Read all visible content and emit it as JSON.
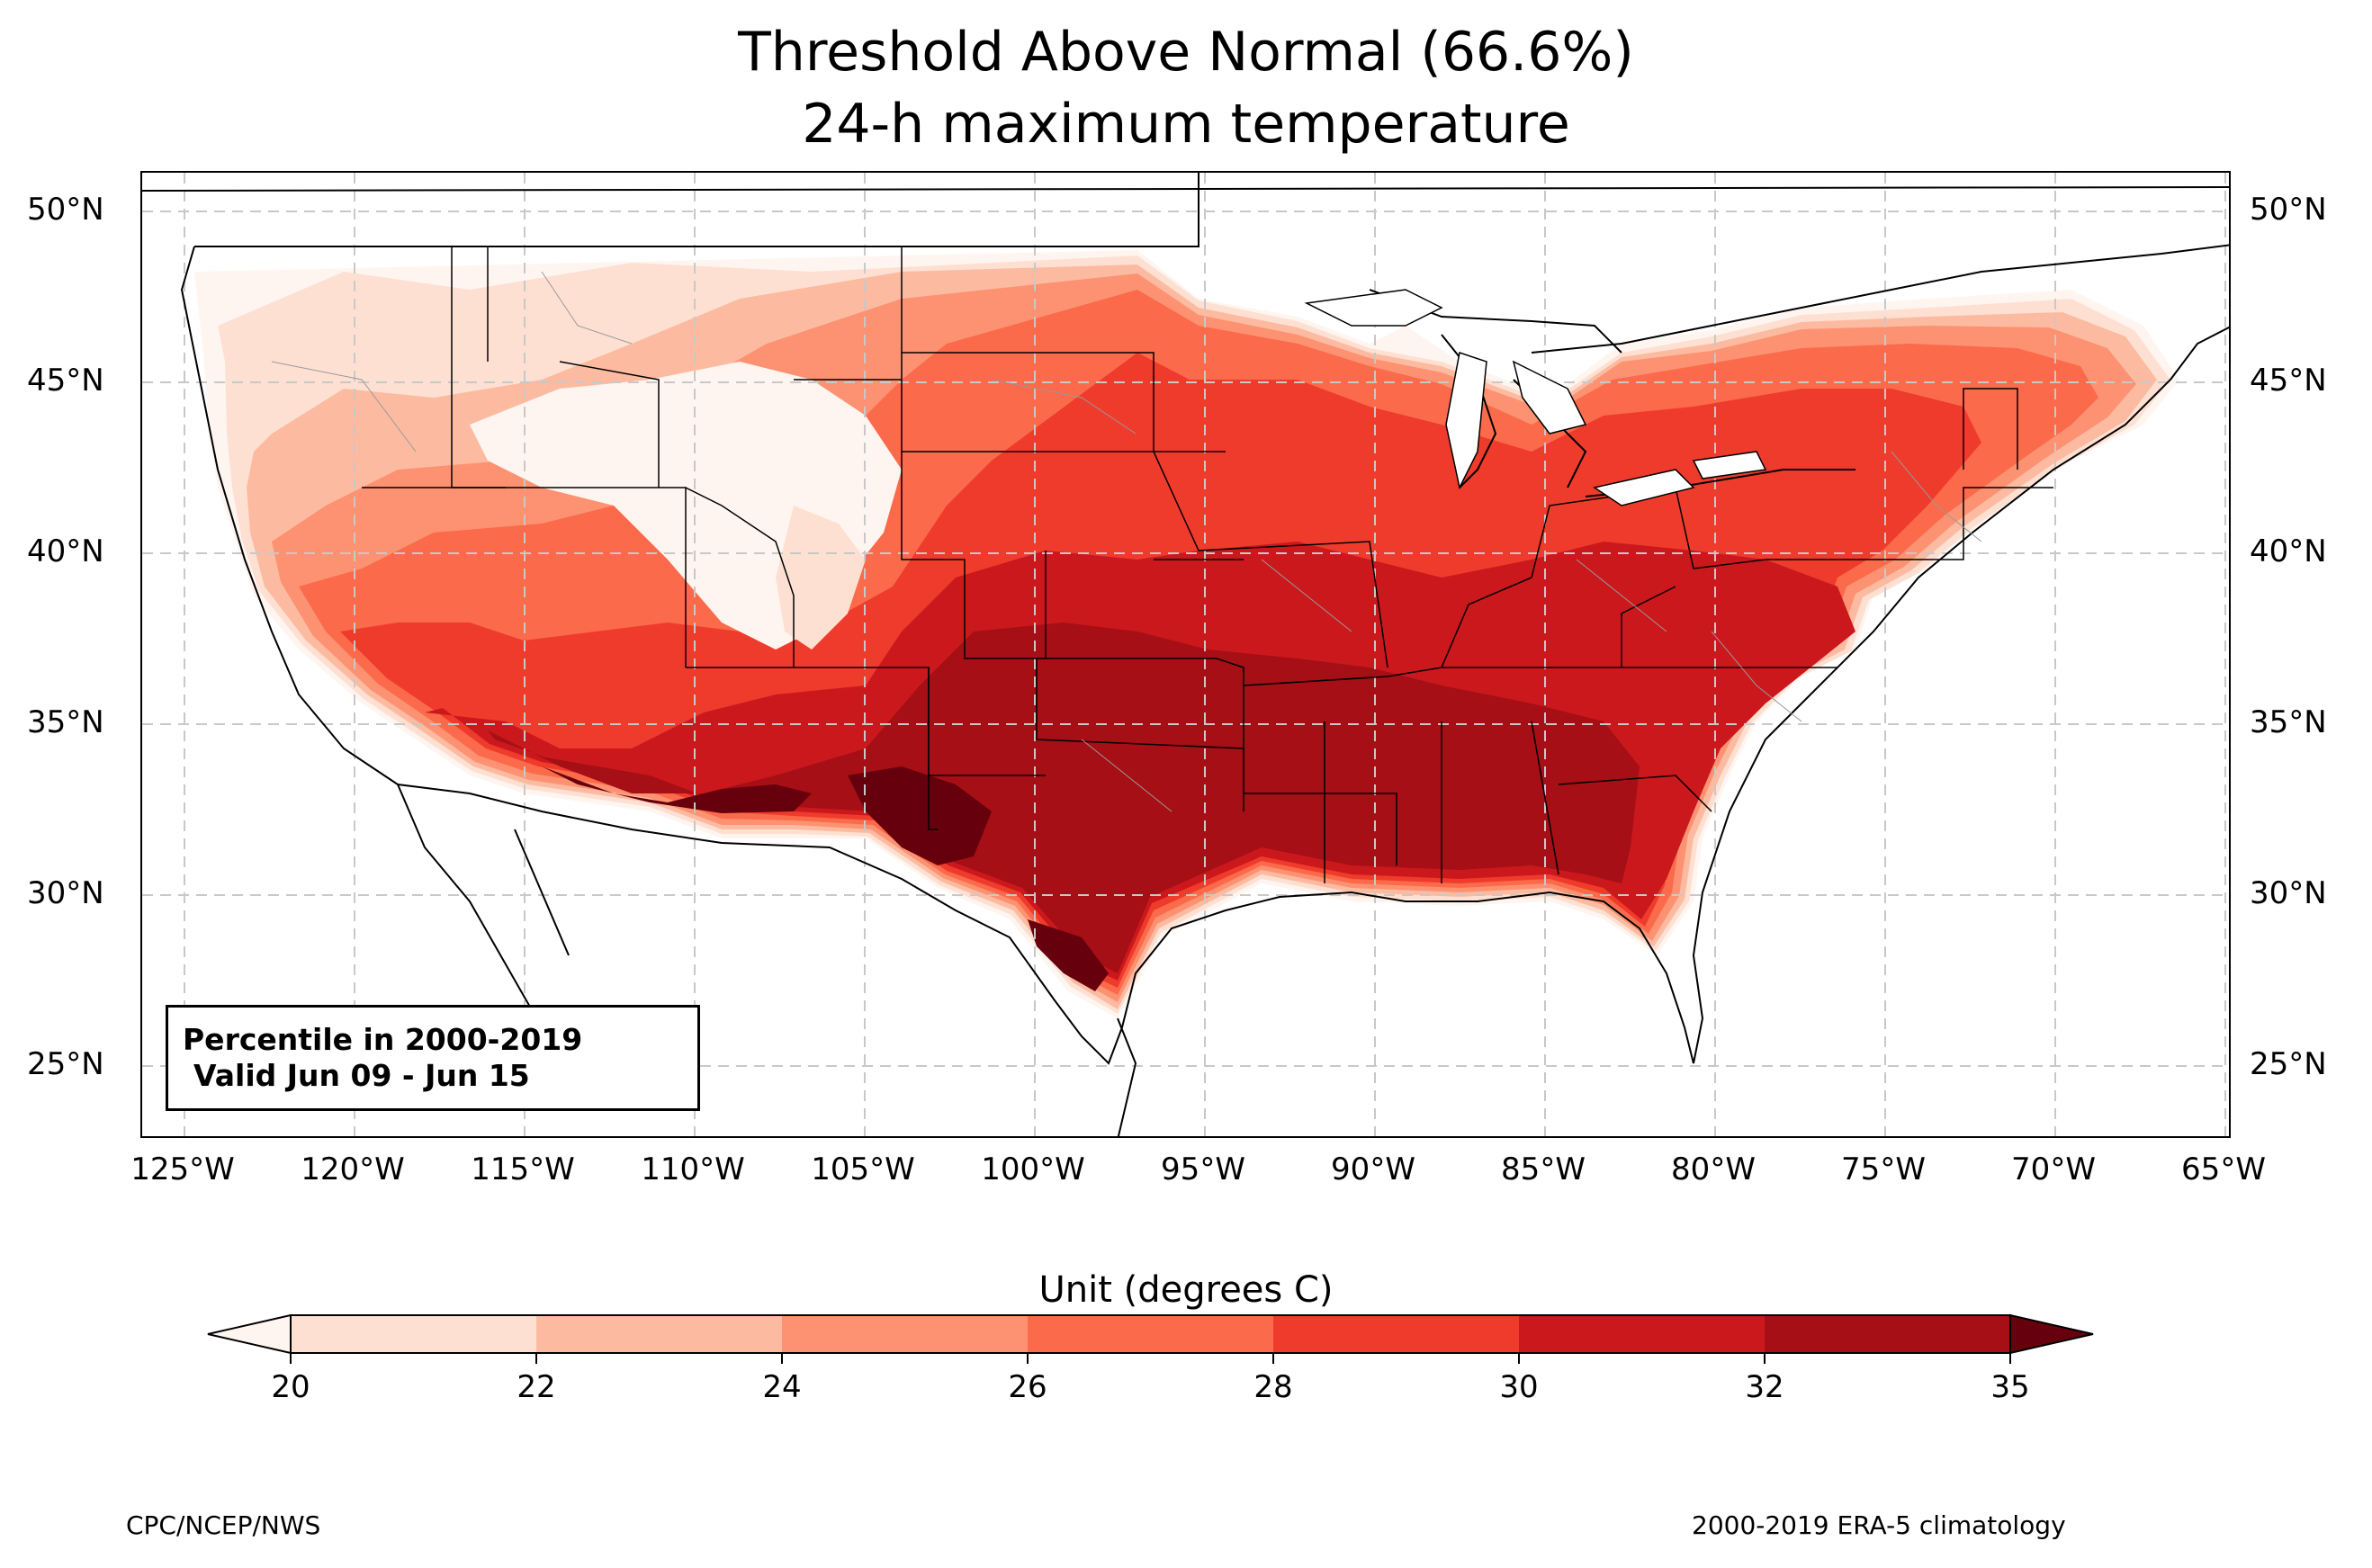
{
  "title_line1": "Threshold Above Normal (66.6%)",
  "title_line2": "24-h maximum temperature",
  "info_box": {
    "line1": "Percentile in 2000-2019",
    "line2": "Valid Jun 09 - Jun 15"
  },
  "lat_ticks": [
    "50°N",
    "45°N",
    "40°N",
    "35°N",
    "30°N",
    "25°N"
  ],
  "lon_ticks": [
    "125°W",
    "120°W",
    "115°W",
    "110°W",
    "105°W",
    "100°W",
    "95°W",
    "90°W",
    "85°W",
    "80°W",
    "75°W",
    "70°W",
    "65°W"
  ],
  "colorbar": {
    "title": "Unit (degrees C)",
    "ticks": [
      "20",
      "22",
      "24",
      "26",
      "28",
      "30",
      "32",
      "35"
    ],
    "colors": [
      "#fee0d2",
      "#fcbba1",
      "#fc9272",
      "#fb6a4a",
      "#ef3b2c",
      "#cb181d",
      "#a50f15"
    ],
    "under_color": "#fff5f0",
    "over_color": "#67000d"
  },
  "footer_left": "CPC/NCEP/NWS",
  "footer_right": "2000-2019 ERA-5 climatology"
}
